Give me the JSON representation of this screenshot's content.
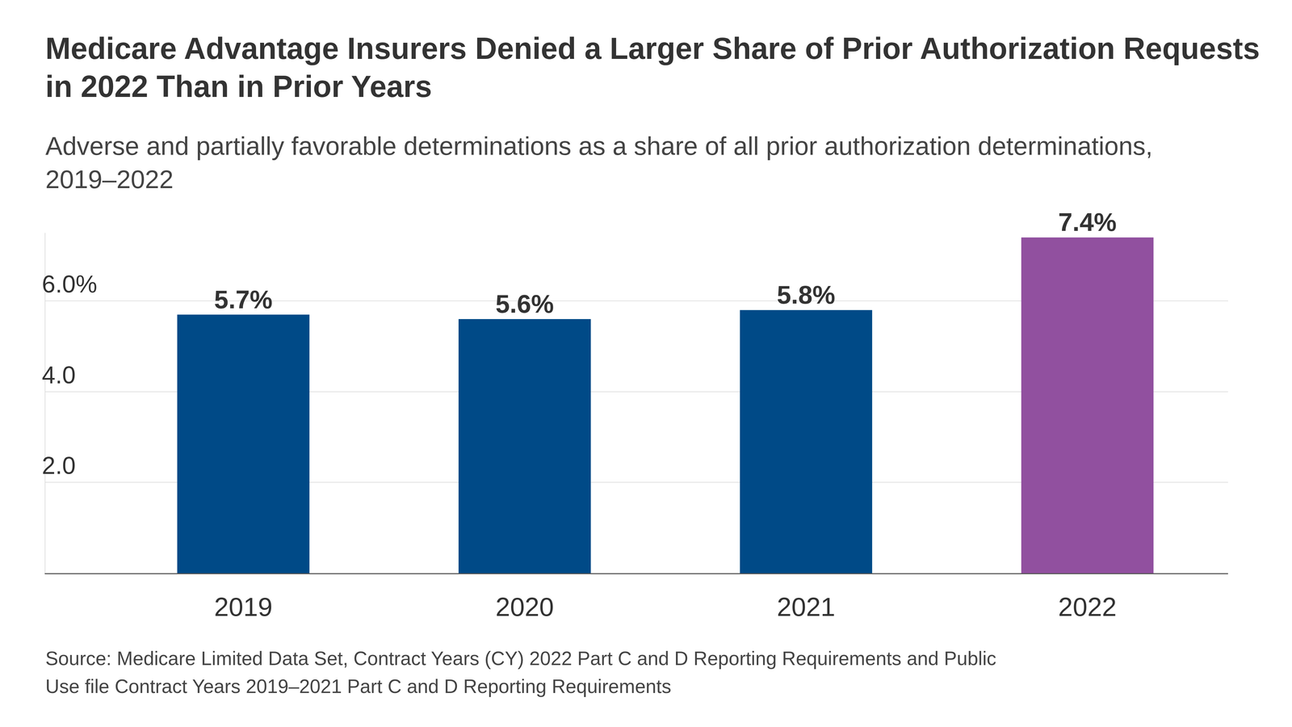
{
  "chart_data": {
    "type": "bar",
    "title": "Medicare Advantage Insurers Denied a Larger Share of Prior Authorization Requests in 2022 Than in Prior Years",
    "subtitle": "Adverse and partially favorable determinations as a share of all prior authorization determinations, 2019–2022",
    "source": "Source: Medicare Limited Data Set, Contract Years (CY) 2022 Part C and D Reporting Requirements and Public Use file Contract Years 2019–2021 Part C and D Reporting Requirements",
    "categories": [
      "2019",
      "2020",
      "2021",
      "2022"
    ],
    "values": [
      5.7,
      5.6,
      5.8,
      7.4
    ],
    "value_labels": [
      "5.7%",
      "5.6%",
      "5.8%",
      "7.4%"
    ],
    "colors": [
      "#004a87",
      "#004a87",
      "#004a87",
      "#91509f"
    ],
    "ylim": [
      0,
      7.5
    ],
    "yticks": [
      {
        "value": 2,
        "label": "2.0"
      },
      {
        "value": 4,
        "label": "4.0"
      },
      {
        "value": 6,
        "label": "6.0%"
      }
    ],
    "grid": true,
    "data_labels": true
  }
}
